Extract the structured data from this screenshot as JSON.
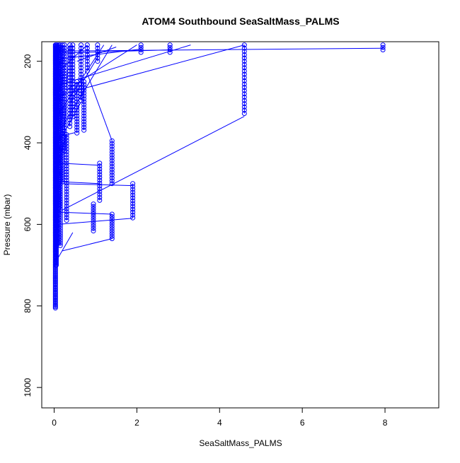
{
  "chart_data": {
    "type": "scatter",
    "title": "ATOM4 Southbound SeaSaltMass_PALMS",
    "xlabel": "SeaSaltMass_PALMS",
    "ylabel": "Pressure (mbar)",
    "xlim": [
      -0.3,
      9.3
    ],
    "ylim": [
      1050,
      152
    ],
    "y_inverted": true,
    "grid": false,
    "legend": "none",
    "xticks": [
      0,
      2,
      4,
      6,
      8
    ],
    "yticks": [
      200,
      400,
      600,
      800,
      1000
    ],
    "marker": "open-circle",
    "connect_points": true,
    "colors": {
      "series": "#0000ff",
      "axis": "#000000"
    },
    "series": [
      {
        "columns": [
          {
            "x": 0.03,
            "p_top": 160,
            "p_bottom": 805,
            "step": 3
          },
          {
            "x": 0.05,
            "p_top": 160,
            "p_bottom": 700,
            "step": 4
          },
          {
            "x": 0.08,
            "p_top": 160,
            "p_bottom": 650,
            "step": 4
          },
          {
            "x": 0.12,
            "p_top": 160,
            "p_bottom": 560,
            "step": 5
          },
          {
            "x": 0.15,
            "p_top": 160,
            "p_bottom": 655,
            "step": 6
          },
          {
            "x": 0.2,
            "p_top": 160,
            "p_bottom": 500,
            "step": 6
          },
          {
            "x": 0.25,
            "p_top": 160,
            "p_bottom": 420,
            "step": 7
          },
          {
            "x": 0.3,
            "p_top": 380,
            "p_bottom": 590,
            "step": 7
          },
          {
            "x": 0.38,
            "p_top": 160,
            "p_bottom": 360,
            "step": 8
          },
          {
            "x": 0.45,
            "p_top": 160,
            "p_bottom": 340,
            "step": 8
          },
          {
            "x": 0.55,
            "p_top": 250,
            "p_bottom": 380,
            "step": 7
          },
          {
            "x": 0.65,
            "p_top": 160,
            "p_bottom": 300,
            "step": 8
          },
          {
            "x": 0.72,
            "p_top": 250,
            "p_bottom": 370,
            "step": 7
          },
          {
            "x": 0.8,
            "p_top": 160,
            "p_bottom": 230,
            "step": 8
          },
          {
            "x": 0.95,
            "p_top": 550,
            "p_bottom": 620,
            "step": 6
          },
          {
            "x": 1.05,
            "p_top": 160,
            "p_bottom": 200,
            "step": 8
          },
          {
            "x": 1.1,
            "p_top": 450,
            "p_bottom": 545,
            "step": 7
          },
          {
            "x": 1.4,
            "p_top": 395,
            "p_bottom": 500,
            "step": 7
          },
          {
            "x": 1.4,
            "p_top": 575,
            "p_bottom": 635,
            "step": 6
          },
          {
            "x": 1.9,
            "p_top": 500,
            "p_bottom": 585,
            "step": 7
          },
          {
            "x": 2.1,
            "p_top": 160,
            "p_bottom": 178,
            "step": 6
          },
          {
            "x": 2.8,
            "p_top": 160,
            "p_bottom": 178,
            "step": 6
          },
          {
            "x": 4.6,
            "p_top": 160,
            "p_bottom": 335,
            "step": 8
          },
          {
            "x": 7.95,
            "p_top": 160,
            "p_bottom": 172,
            "step": 6
          }
        ],
        "links": [
          [
            0.05,
            690,
            0.45,
            620
          ],
          [
            0.2,
            665,
            1.4,
            635
          ],
          [
            0.1,
            600,
            1.9,
            585
          ],
          [
            0.12,
            570,
            1.4,
            575
          ],
          [
            0.2,
            565,
            4.6,
            335
          ],
          [
            0.1,
            500,
            1.9,
            505
          ],
          [
            0.05,
            495,
            1.1,
            500
          ],
          [
            0.15,
            450,
            1.1,
            455
          ],
          [
            0.1,
            385,
            0.5,
            375
          ],
          [
            0.8,
            230,
            1.4,
            395
          ],
          [
            0.1,
            330,
            1.2,
            160
          ],
          [
            0.3,
            270,
            2.0,
            160
          ],
          [
            0.2,
            360,
            1.4,
            160
          ],
          [
            0.05,
            260,
            3.3,
            160
          ],
          [
            0.1,
            180,
            2.8,
            172
          ],
          [
            0.15,
            175,
            7.95,
            168
          ],
          [
            0.05,
            230,
            0.8,
            160
          ],
          [
            0.4,
            300,
            1.05,
            190
          ],
          [
            0.05,
            410,
            0.65,
            300
          ],
          [
            0.05,
            285,
            4.6,
            160
          ],
          [
            0.1,
            195,
            2.1,
            170
          ],
          [
            0.25,
            380,
            0.35,
            165
          ],
          [
            0.05,
            460,
            0.3,
            380
          ],
          [
            0.55,
            200,
            1.5,
            165
          ]
        ]
      }
    ]
  }
}
